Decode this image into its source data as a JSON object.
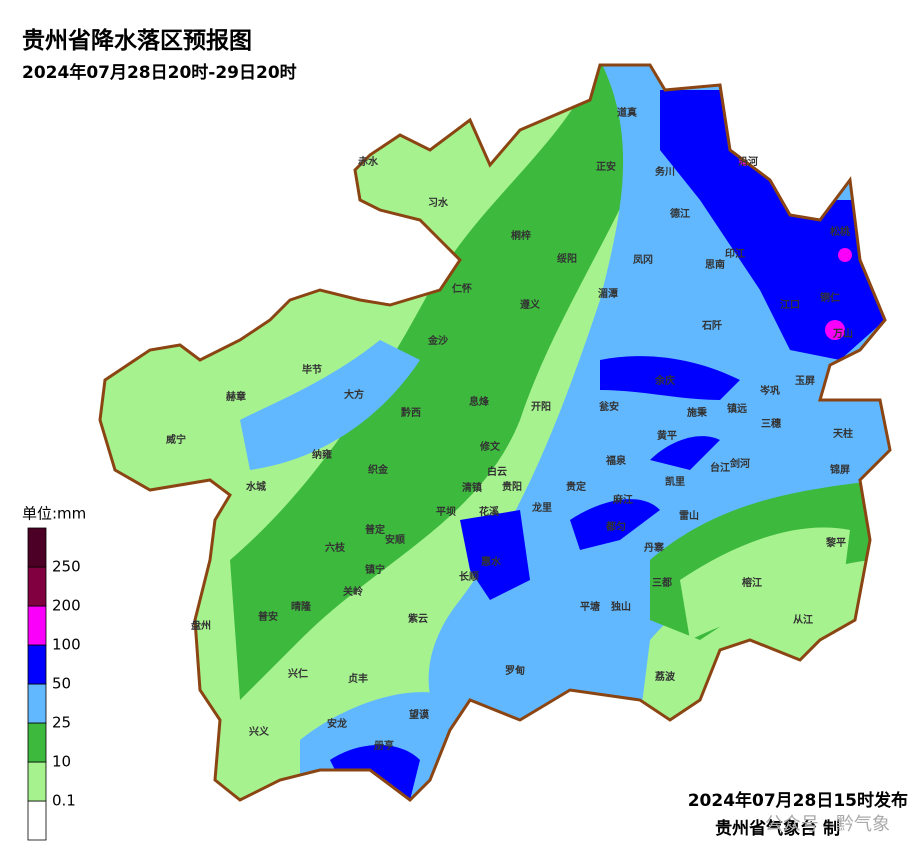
{
  "header": {
    "title": "贵州省降水落区预报图",
    "subtitle": "2024年07月28日20时-29日20时"
  },
  "legend": {
    "title": "单位:mm",
    "levels": [
      0.1,
      10,
      25,
      50,
      100,
      200,
      250
    ],
    "colors": [
      "#ffffff",
      "#a6f28f",
      "#3dba3d",
      "#61b8ff",
      "#0000ff",
      "#fa00fa",
      "#800040",
      "#4d0026"
    ]
  },
  "counties": [
    "赤水",
    "习水",
    "桐梓",
    "道真",
    "正安",
    "务川",
    "沿河",
    "德江",
    "印江",
    "松桃",
    "绥阳",
    "凤冈",
    "思南",
    "江口",
    "铜仁",
    "仁怀",
    "遵义",
    "湄潭",
    "石阡",
    "万山",
    "金沙",
    "毕节",
    "大方",
    "息烽",
    "开阳",
    "余庆",
    "岑巩",
    "玉屏",
    "赫章",
    "黔西",
    "施秉",
    "镇远",
    "三穗",
    "瓮安",
    "黄平",
    "天柱",
    "威宁",
    "纳雍",
    "织金",
    "修文",
    "福泉",
    "台江",
    "剑河",
    "锦屏",
    "水城",
    "清镇",
    "白云",
    "贵阳",
    "龙里",
    "凯里",
    "贵定",
    "麻江",
    "雷山",
    "平坝",
    "花溪",
    "黎平",
    "普定",
    "安顺",
    "长顺",
    "都匀",
    "丹寨",
    "六枝",
    "镇宁",
    "惠水",
    "三都",
    "榕江",
    "晴隆",
    "关岭",
    "紫云",
    "平塘",
    "独山",
    "从江",
    "盘州",
    "普安",
    "兴仁",
    "贞丰",
    "罗甸",
    "荔波",
    "望谟",
    "兴义",
    "安龙",
    "册亨"
  ],
  "footer": {
    "issued": "2024年07月28日15时发布",
    "issuer": "贵州省气象台 制",
    "watermark": "公众号 · 黔气象"
  }
}
